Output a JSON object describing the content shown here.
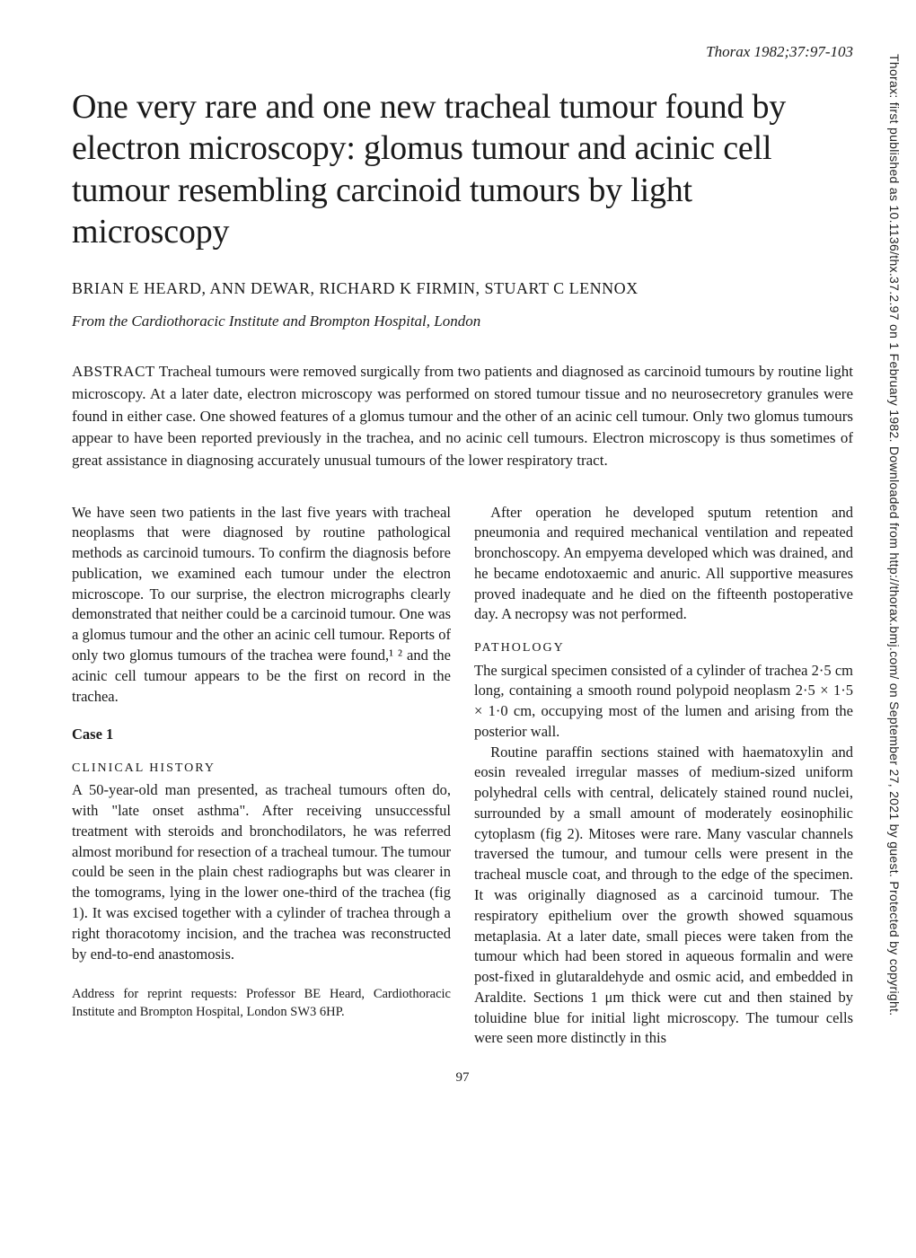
{
  "journal_ref": "Thorax 1982;37:97-103",
  "title": "One very rare and one new tracheal tumour found by electron microscopy: glomus tumour and acinic cell tumour resembling carcinoid tumours by light microscopy",
  "authors": "BRIAN E HEARD, ANN DEWAR, RICHARD K FIRMIN, STUART C LENNOX",
  "affiliation": "From the Cardiothoracic Institute and Brompton Hospital, London",
  "abstract_label": "ABSTRACT",
  "abstract_text": "  Tracheal tumours were removed surgically from two patients and diagnosed as carcinoid tumours by routine light microscopy. At a later date, electron microscopy was performed on stored tumour tissue and no neurosecretory granules were found in either case. One showed features of a glomus tumour and the other of an acinic cell tumour. Only two glomus tumours appear to have been reported previously in the trachea, and no acinic cell tumours. Electron microscopy is thus sometimes of great assistance in diagnosing accurately unusual tumours of the lower respiratory tract.",
  "left": {
    "intro": "We have seen two patients in the last five years with tracheal neoplasms that were diagnosed by routine pathological methods as carcinoid tumours. To confirm the diagnosis before publication, we examined each tumour under the electron microscope. To our surprise, the electron micrographs clearly demonstrated that neither could be a carcinoid tumour. One was a glomus tumour and the other an acinic cell tumour. Reports of only two glomus tumours of the trachea were found,¹ ² and the acinic cell tumour appears to be the first on record in the trachea.",
    "case_heading": "Case 1",
    "clinical_heading": "CLINICAL HISTORY",
    "clinical_text": "A 50-year-old man presented, as tracheal tumours often do, with \"late onset asthma\". After receiving unsuccessful treatment with steroids and bronchodilators, he was referred almost moribund for resection of a tracheal tumour. The tumour could be seen in the plain chest radiographs but was clearer in the tomograms, lying in the lower one-third of the trachea (fig 1). It was excised together with a cylinder of trachea through a right thoracotomy incision, and the trachea was reconstructed by end-to-end anastomosis.",
    "address": "Address for reprint requests: Professor BE Heard, Cardiothoracic Institute and Brompton Hospital, London SW3 6HP."
  },
  "right": {
    "followup": "After operation he developed sputum retention and pneumonia and required mechanical ventilation and repeated bronchoscopy. An empyema developed which was drained, and he became endotoxaemic and anuric. All supportive measures proved inadequate and he died on the fifteenth postoperative day. A necropsy was not performed.",
    "pathology_heading": "PATHOLOGY",
    "pathology_p1": "The surgical specimen consisted of a cylinder of trachea 2·5 cm long, containing a smooth round polypoid neoplasm 2·5 × 1·5 × 1·0 cm, occupying most of the lumen and arising from the posterior wall.",
    "pathology_p2": "Routine paraffin sections stained with haematoxylin and eosin revealed irregular masses of medium-sized uniform polyhedral cells with central, delicately stained round nuclei, surrounded by a small amount of moderately eosinophilic cytoplasm (fig 2). Mitoses were rare. Many vascular channels traversed the tumour, and tumour cells were present in the tracheal muscle coat, and through to the edge of the specimen. It was originally diagnosed as a carcinoid tumour. The respiratory epithelium over the growth showed squamous metaplasia. At a later date, small pieces were taken from the tumour which had been stored in aqueous formalin and were post-fixed in glutaraldehyde and osmic acid, and embedded in Araldite. Sections 1 μm thick were cut and then stained by toluidine blue for initial light microscopy. The tumour cells were seen more distinctly in this"
  },
  "page_number": "97",
  "sidebar": "Thorax: first published as 10.1136/thx.37.2.97 on 1 February 1982. Downloaded from http://thorax.bmj.com/ on September 27, 2021 by guest. Protected by copyright."
}
